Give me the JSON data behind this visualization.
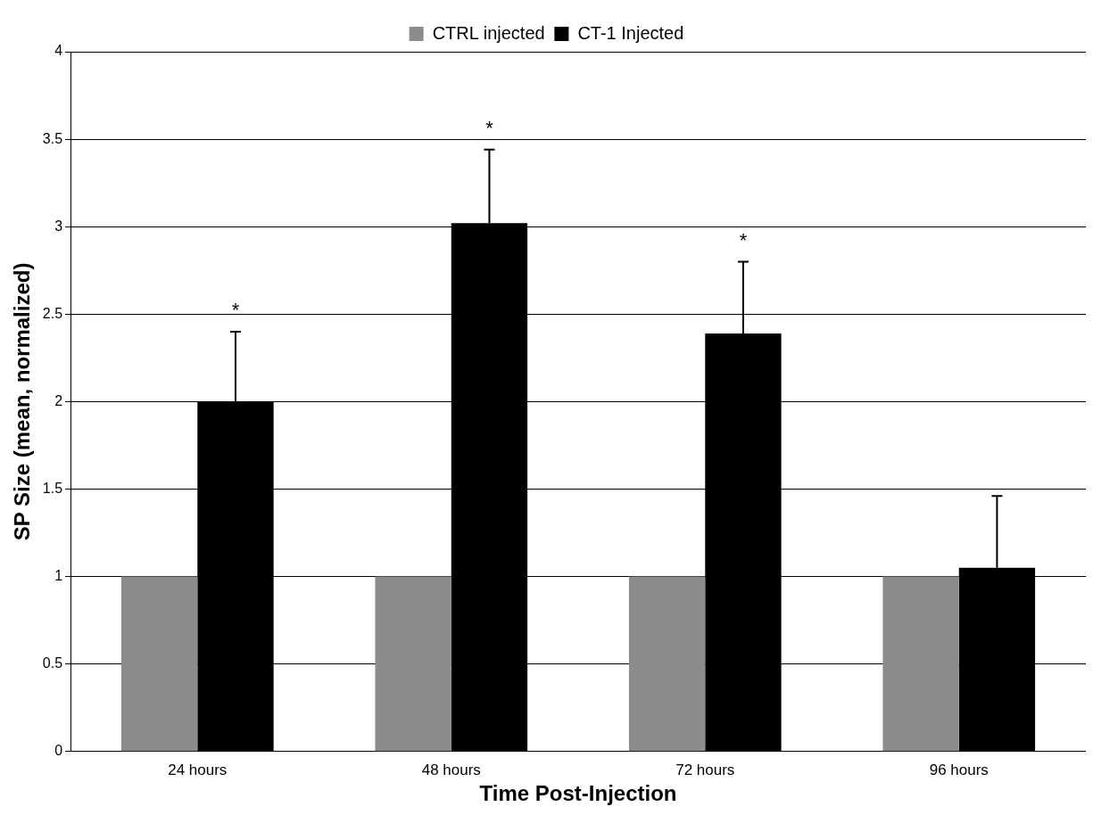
{
  "chart_data": {
    "type": "bar",
    "xlabel": "Time Post-Injection",
    "ylabel": "SP Size (mean, normalized)",
    "categories": [
      "24 hours",
      "48 hours",
      "72 hours",
      "96 hours"
    ],
    "series": [
      {
        "name": "CTRL injected",
        "color": "#8c8c8c",
        "values": [
          1,
          1,
          1,
          1
        ]
      },
      {
        "name": "CT-1 Injected",
        "color": "#000000",
        "values": [
          2.0,
          3.02,
          2.39,
          1.05
        ],
        "errors": [
          [
            2.0,
            2.4
          ],
          [
            3.02,
            3.44
          ],
          [
            2.39,
            2.8
          ],
          [
            1.05,
            1.46
          ]
        ]
      }
    ],
    "ylim": [
      0,
      4
    ],
    "yticks": [
      0,
      0.5,
      1,
      1.5,
      2,
      2.5,
      3,
      3.5,
      4
    ],
    "grid": "y",
    "legend": "top",
    "annotations": [
      "*",
      "*",
      "*"
    ]
  }
}
